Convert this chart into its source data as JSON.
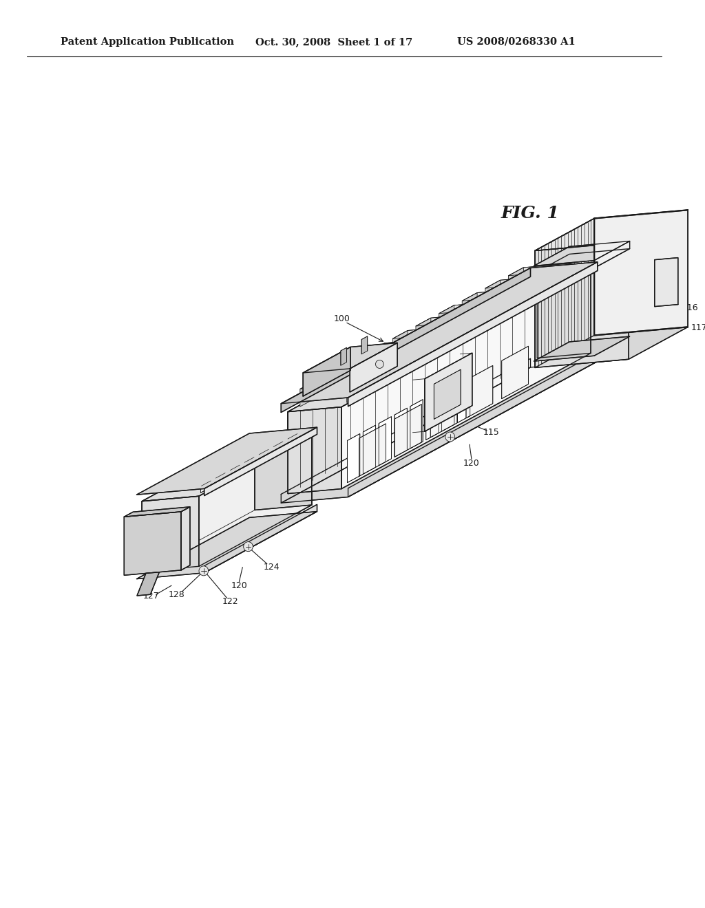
{
  "background_color": "#ffffff",
  "header_left": "Patent Application Publication",
  "header_mid": "Oct. 30, 2008  Sheet 1 of 17",
  "header_right": "US 2008/0268330 A1",
  "fig_label": "FIG. 1",
  "line_color": "#1a1a1a",
  "text_color": "#1a1a1a",
  "header_fontsize": 10.5,
  "ref_fontsize": 9,
  "fig_label_fontsize": 18,
  "lw_thin": 0.6,
  "lw_med": 1.0,
  "lw_thick": 1.5,
  "lw_xthick": 2.0
}
